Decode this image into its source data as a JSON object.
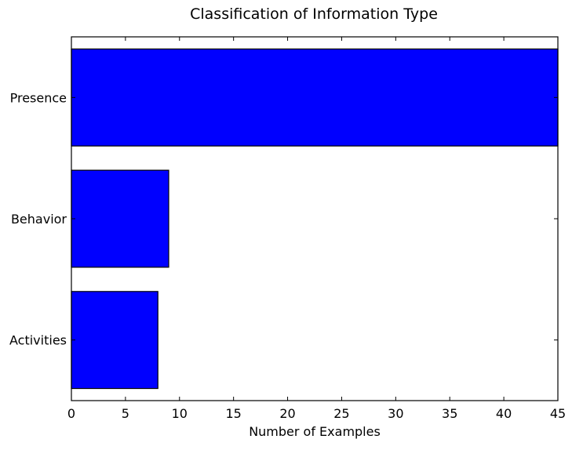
{
  "chart_data": {
    "type": "bar",
    "orientation": "horizontal",
    "title": "Classification of Information Type",
    "xlabel": "Number of Examples",
    "ylabel": "",
    "categories": [
      "Presence",
      "Behavior",
      "Activities"
    ],
    "values": [
      45,
      9,
      8
    ],
    "xlim": [
      0,
      45
    ],
    "xticks": [
      0,
      5,
      10,
      15,
      20,
      25,
      30,
      35,
      40,
      45
    ],
    "bar_color": "#0000ff",
    "edge_color": "#000000",
    "grid": false,
    "legend": "none"
  }
}
